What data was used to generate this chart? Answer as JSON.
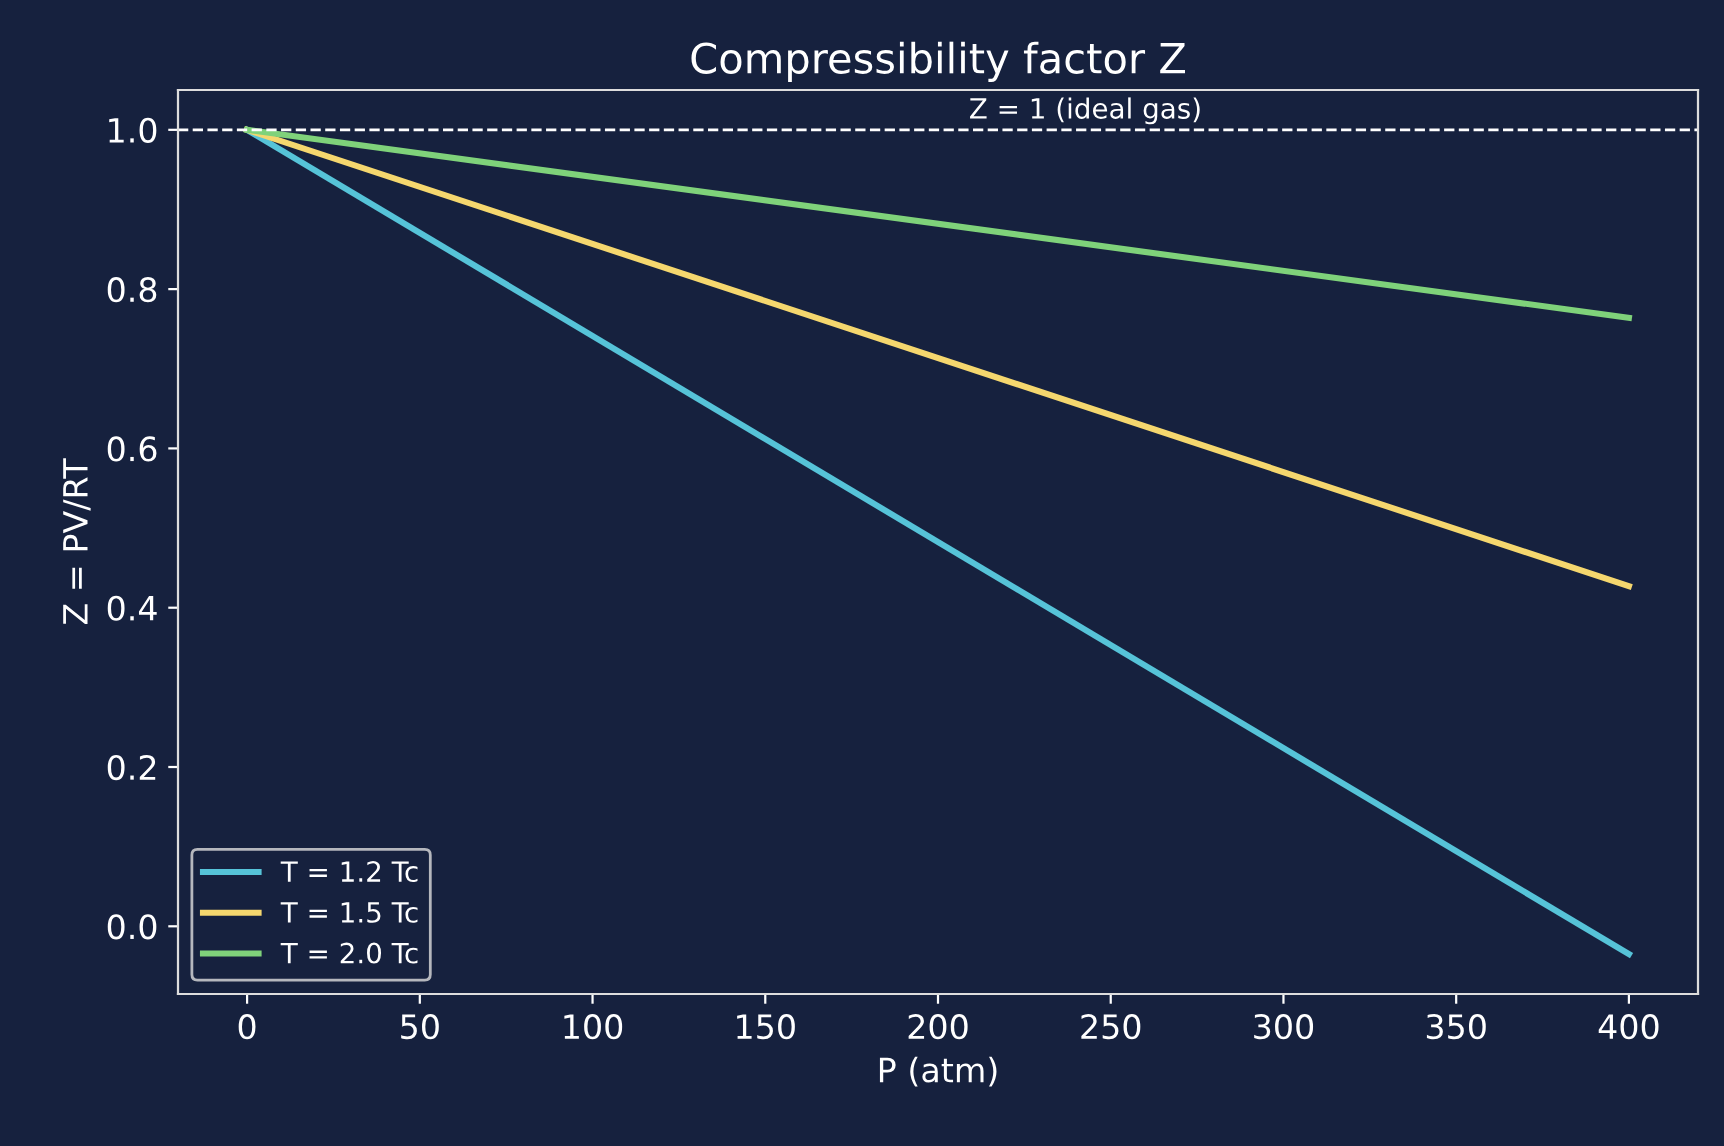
{
  "chart_data": {
    "type": "line",
    "title": "Compressibility factor Z",
    "xlabel": "P (atm)",
    "ylabel": "Z = PV/RT",
    "x": [
      0,
      400
    ],
    "series": [
      {
        "name": "T = 1.2 Tc",
        "color": "#56c3d8",
        "values": [
          1.0,
          -0.035
        ]
      },
      {
        "name": "T = 1.5 Tc",
        "color": "#f5d76e",
        "values": [
          1.0,
          0.427
        ]
      },
      {
        "name": "T = 2.0 Tc",
        "color": "#7fd27a",
        "values": [
          1.0,
          0.764
        ]
      }
    ],
    "xlim": [
      -20,
      420
    ],
    "ylim": [
      -0.085,
      1.05
    ],
    "xticks": [
      0,
      50,
      100,
      150,
      200,
      250,
      300,
      350,
      400
    ],
    "yticks": [
      {
        "value": 0,
        "label": "0.0"
      },
      0.2,
      0.4,
      0.6,
      0.8,
      {
        "value": 1,
        "label": "1.0"
      }
    ],
    "ref_lines": [
      {
        "axis": "y",
        "value": 1,
        "label": "Z = 1 (ideal gas)",
        "color": "#ffffff",
        "line_style": "dashed"
      }
    ],
    "legend": "bottom left",
    "grid": false,
    "marker": "none",
    "line_style": "solid"
  }
}
